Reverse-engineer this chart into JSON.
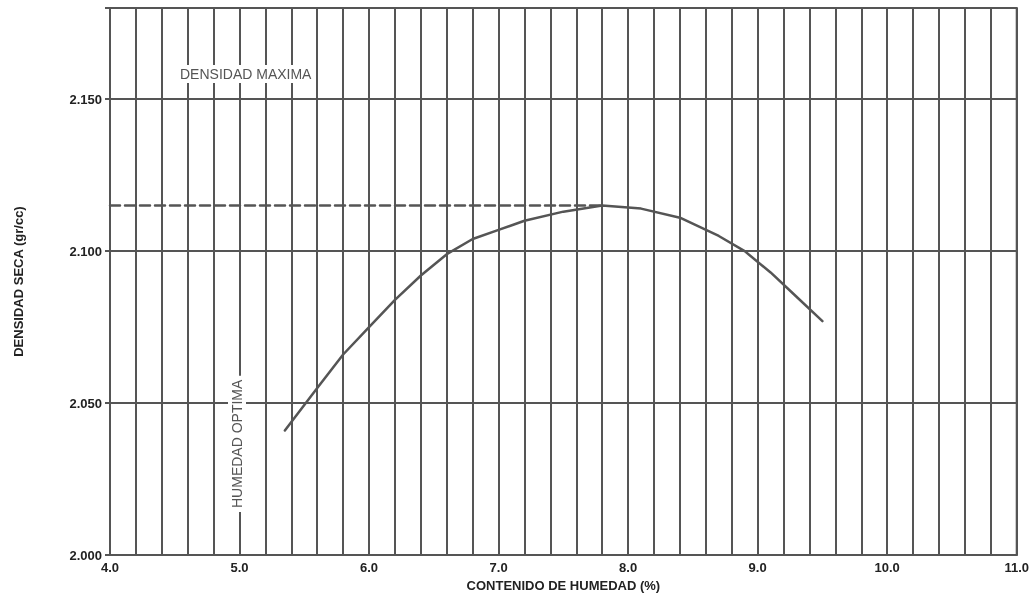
{
  "chart_data": {
    "type": "line",
    "xlabel": "CONTENIDO DE HUMEDAD (%)",
    "ylabel": "DENSIDAD SECA (gr/cc)",
    "xlim": [
      4.0,
      11.0
    ],
    "xticks": [
      {
        "value": 4,
        "label": "4.0"
      },
      {
        "value": 5,
        "label": "5.0"
      },
      {
        "value": 6,
        "label": "6.0"
      },
      {
        "value": 7,
        "label": "7.0"
      },
      {
        "value": 8,
        "label": "8.0"
      },
      {
        "value": 9,
        "label": "9.0"
      },
      {
        "value": 10,
        "label": "10.0"
      },
      {
        "value": 11,
        "label": "11.0"
      }
    ],
    "ylim": [
      2.0,
      2.18
    ],
    "yticks": [
      {
        "value": 2.0,
        "label": "2.000"
      },
      {
        "value": 2.05,
        "label": "2.050"
      },
      {
        "value": 2.1,
        "label": "2.100"
      },
      {
        "value": 2.15,
        "label": "2.150"
      }
    ],
    "grid": true,
    "marker": "none",
    "line_style": "solid",
    "series": [
      {
        "color": "#555555",
        "x": [
          5.35,
          5.6,
          5.8,
          6.0,
          6.2,
          6.4,
          6.6,
          6.8,
          7.0,
          7.2,
          7.5,
          7.8,
          8.1,
          8.4,
          8.7,
          8.9,
          9.1,
          9.3,
          9.5
        ],
        "values": [
          2.041,
          2.055,
          2.066,
          2.075,
          2.084,
          2.092,
          2.099,
          2.104,
          2.107,
          2.11,
          2.113,
          2.115,
          2.114,
          2.111,
          2.105,
          2.1,
          2.093,
          2.085,
          2.077
        ]
      },
      {
        "color": "#555555",
        "line_style": "dashed",
        "x": [
          4.0,
          7.8
        ],
        "values": [
          2.115,
          2.115
        ]
      }
    ],
    "annotations": [
      "DENSIDAD MAXIMA",
      "HUMEDAD OPTIMA"
    ]
  }
}
